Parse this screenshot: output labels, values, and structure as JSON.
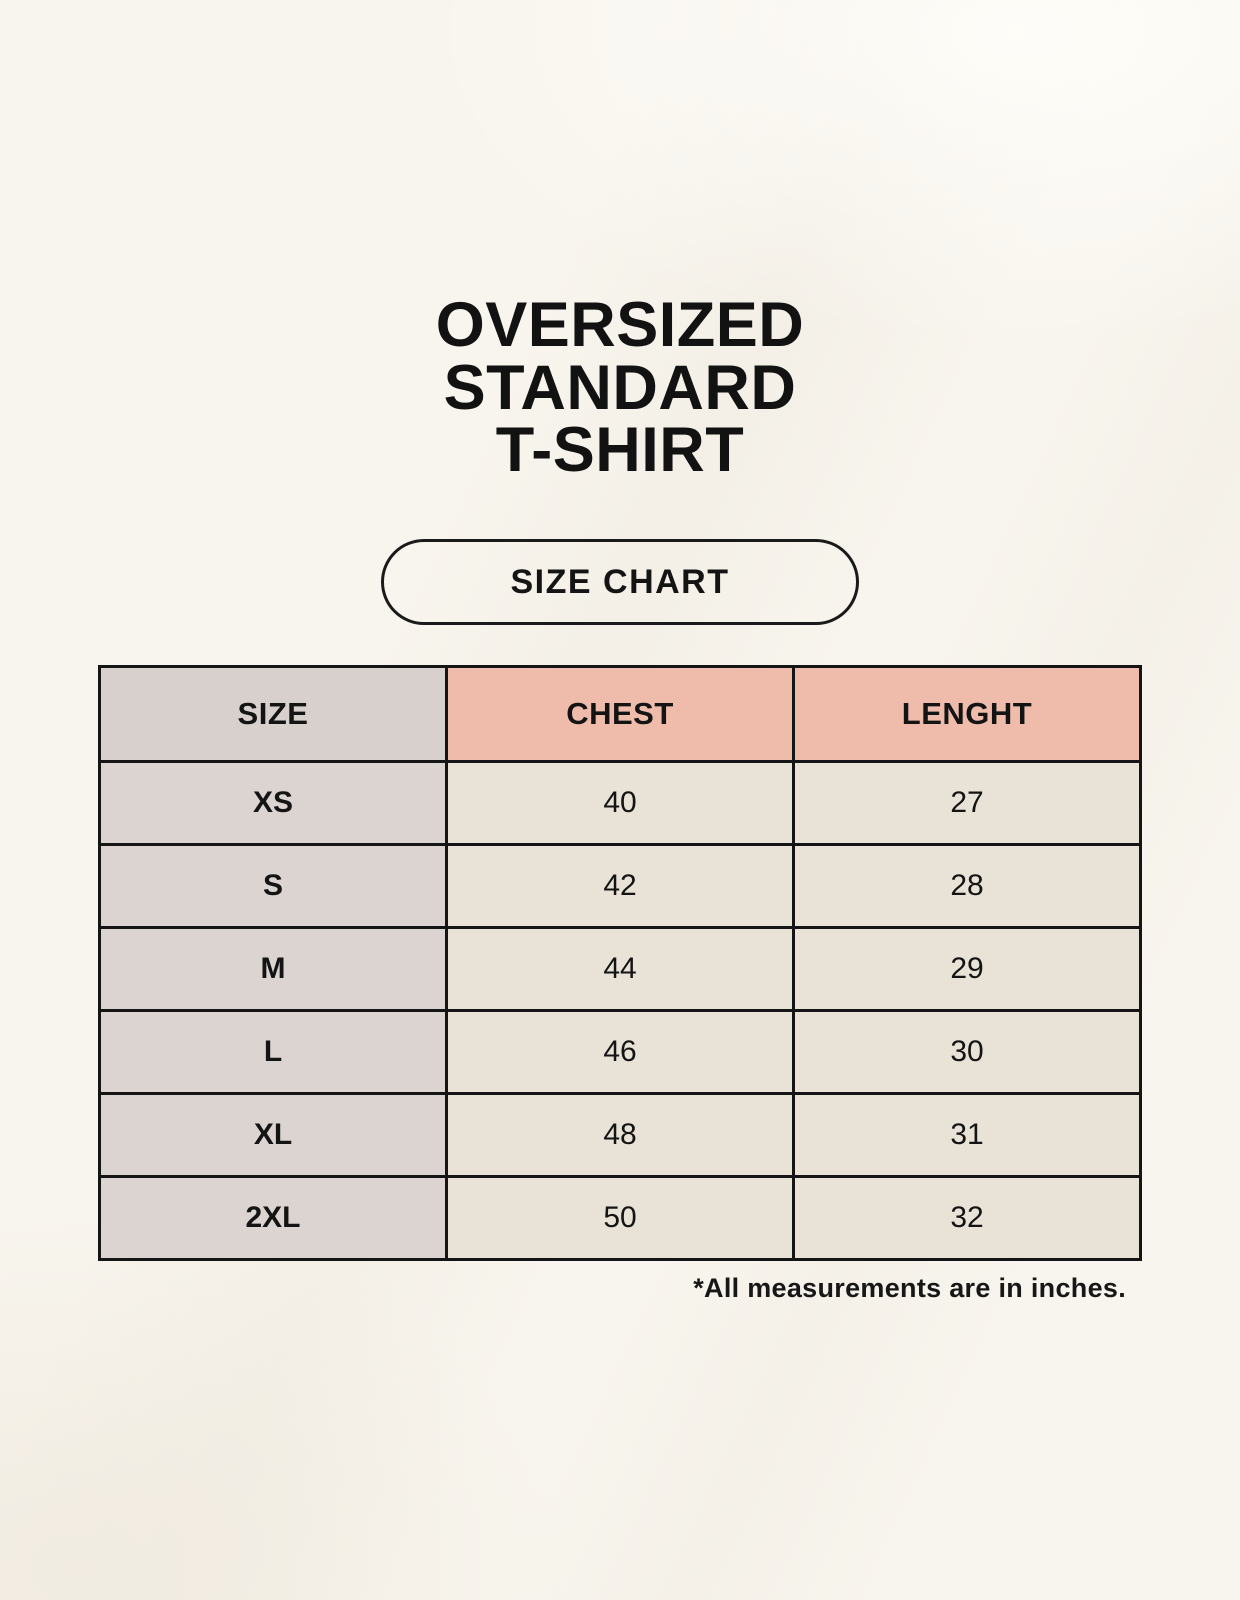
{
  "title": {
    "line1": "OVERSIZED",
    "line2": "STANDARD",
    "line3": "T-SHIRT"
  },
  "badge": {
    "label": "SIZE CHART"
  },
  "table": {
    "headers": {
      "size": "SIZE",
      "chest": "CHEST",
      "length": "LENGHT"
    },
    "rows": [
      {
        "size": "XS",
        "chest": "40",
        "length": "27"
      },
      {
        "size": "S",
        "chest": "42",
        "length": "28"
      },
      {
        "size": "M",
        "chest": "44",
        "length": "29"
      },
      {
        "size": "L",
        "chest": "46",
        "length": "30"
      },
      {
        "size": "XL",
        "chest": "48",
        "length": "31"
      },
      {
        "size": "2XL",
        "chest": "50",
        "length": "32"
      }
    ]
  },
  "footnote": "*All measurements are in inches.",
  "colors": {
    "background": "#f8f5ee",
    "header_gray": "#d7d0cc",
    "header_pink": "#efbcab",
    "size_column": "#dbd4d0",
    "value_cell": "#e9e2d7",
    "border": "#151515",
    "text": "#141414"
  }
}
